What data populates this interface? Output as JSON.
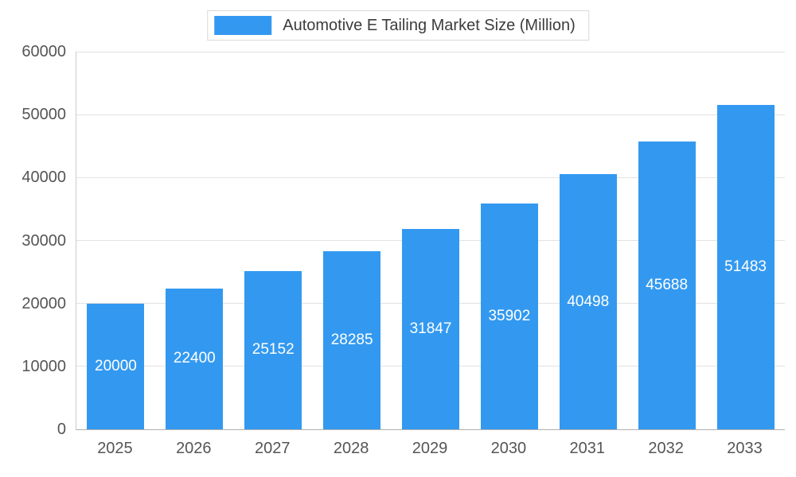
{
  "chart_data": {
    "type": "bar",
    "title": "Automotive E Tailing Market Size (Million)",
    "categories": [
      "2025",
      "2026",
      "2027",
      "2028",
      "2029",
      "2030",
      "2031",
      "2032",
      "2033"
    ],
    "values": [
      20000,
      22400,
      25152,
      28285,
      31847,
      35902,
      40498,
      45688,
      51483
    ],
    "xlabel": "",
    "ylabel": "",
    "ylim": [
      0,
      60000
    ],
    "yticks": [
      0,
      10000,
      20000,
      30000,
      40000,
      50000,
      60000
    ],
    "grid": true,
    "legend_position": "top",
    "bar_color": "#3399f0",
    "value_label_color": "#ffffff",
    "axis_text_color": "#555555",
    "title_text_color": "#3c3c3c"
  }
}
